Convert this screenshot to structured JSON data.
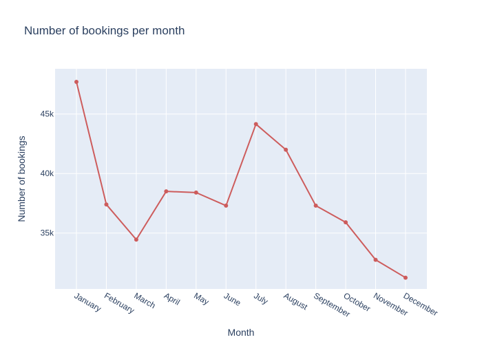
{
  "chart_data": {
    "type": "line",
    "title": "Number of bookings per month",
    "xlabel": "Month",
    "ylabel": "Number of bookings",
    "categories": [
      "January",
      "February",
      "March",
      "April",
      "May",
      "June",
      "July",
      "August",
      "September",
      "October",
      "November",
      "December"
    ],
    "series": [
      {
        "values": [
          47700,
          37400,
          34450,
          38500,
          38400,
          37300,
          44150,
          42000,
          37300,
          35900,
          32750,
          31250
        ],
        "color": "#cd5c5c"
      }
    ],
    "ylim": [
      30300,
      48800
    ],
    "yticks": [
      35000,
      40000,
      45000
    ],
    "ytick_labels": [
      "35k",
      "40k",
      "45k"
    ],
    "grid": true,
    "legend": "none",
    "plot_bg": "#e5ecf6",
    "text_color": "#2a3f5f"
  }
}
